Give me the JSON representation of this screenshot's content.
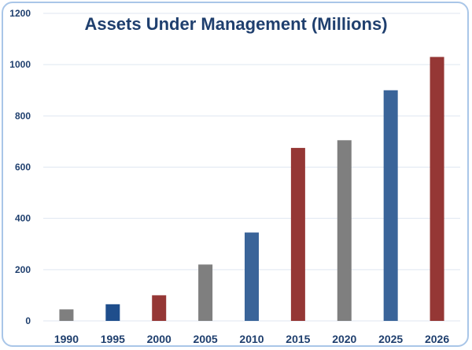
{
  "chart_data": {
    "type": "bar",
    "title": "Assets Under Management (Millions)",
    "xlabel": "",
    "ylabel": "",
    "categories": [
      "1990",
      "1995",
      "2000",
      "2005",
      "2010",
      "2015",
      "2020",
      "2025",
      "2026"
    ],
    "values": [
      45,
      65,
      100,
      220,
      345,
      675,
      705,
      900,
      1030
    ],
    "bar_colors": [
      "#7f7f7f",
      "#1f4e8c",
      "#953735",
      "#7f7f7f",
      "#3a6499",
      "#953735",
      "#7f7f7f",
      "#3a6499",
      "#953735"
    ],
    "ylim": [
      0,
      1200
    ],
    "yticks": [
      0,
      200,
      400,
      600,
      800,
      1000,
      1200
    ],
    "grid": true,
    "legend": false
  }
}
